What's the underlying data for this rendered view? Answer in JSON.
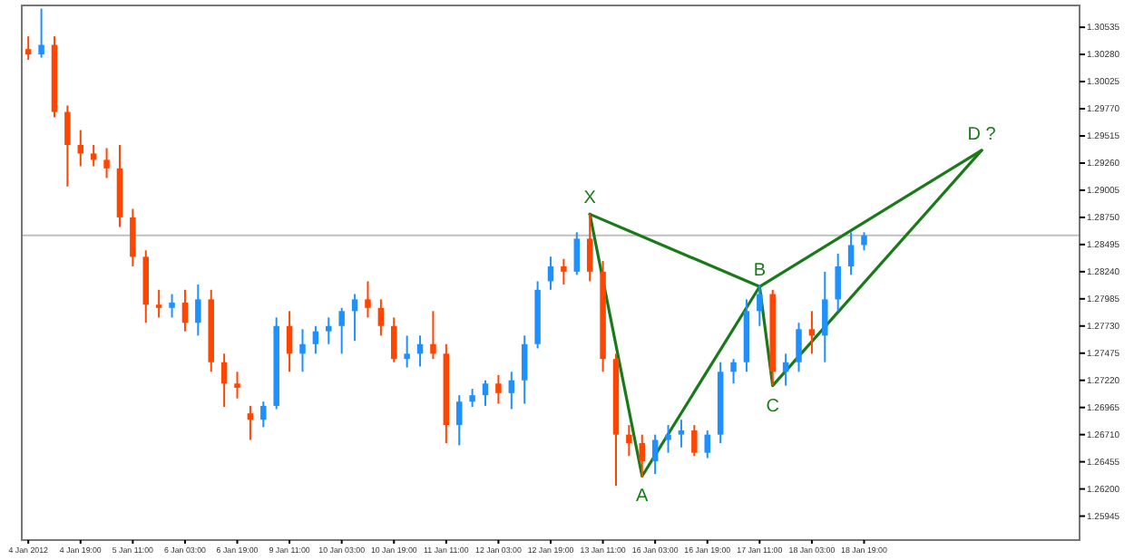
{
  "chart_data": {
    "type": "candlestick",
    "categories": [
      "4 Jan 2012",
      null,
      null,
      null,
      "4 Jan 19:00",
      null,
      null,
      null,
      "5 Jan 11:00",
      null,
      null,
      null,
      "6 Jan 03:00",
      null,
      null,
      null,
      "6 Jan 19:00",
      null,
      null,
      null,
      "9 Jan 11:00",
      null,
      null,
      null,
      "10 Jan 03:00",
      null,
      null,
      null,
      "10 Jan 19:00",
      null,
      null,
      null,
      "11 Jan 11:00",
      null,
      null,
      null,
      "12 Jan 03:00",
      null,
      null,
      null,
      "12 Jan 19:00",
      null,
      null,
      null,
      "13 Jan 11:00",
      null,
      null,
      null,
      "16 Jan 03:00",
      null,
      null,
      null,
      "16 Jan 19:00",
      null,
      null,
      null,
      "17 Jan 11:00",
      null,
      null,
      null,
      "18 Jan 03:00",
      null,
      null,
      null,
      "18 Jan 19:00",
      null,
      null,
      null,
      null,
      null,
      null,
      null,
      null,
      null,
      null,
      null,
      null,
      null,
      null,
      null,
      null
    ],
    "ylim": [
      1.2572,
      1.3074
    ],
    "yticks": [
      1.25945,
      {
        "value": 1.262,
        "label": "1.26200"
      },
      1.26455,
      {
        "value": 1.2671,
        "label": "1.26710"
      },
      1.26965,
      {
        "value": 1.2722,
        "label": "1.27220"
      },
      1.27475,
      {
        "value": 1.2773,
        "label": "1.27730"
      },
      1.27985,
      {
        "value": 1.2824,
        "label": "1.28240"
      },
      1.28495,
      {
        "value": 1.2875,
        "label": "1.28750"
      },
      1.29005,
      {
        "value": 1.2926,
        "label": "1.29260"
      },
      1.29515,
      {
        "value": 1.2977,
        "label": "1.29770"
      },
      1.30025,
      {
        "value": 1.3028,
        "label": "1.30280"
      },
      1.30535
    ],
    "series": [
      {
        "colors": [
          "#ff4500",
          "#1e90ff",
          "#ff4500",
          "#ff4500",
          "#ff4500",
          "#ff4500",
          "#ff4500",
          "#ff4500",
          "#ff4500",
          "#ff4500",
          "#ff4500",
          "#1e90ff",
          "#ff4500",
          "#1e90ff",
          "#ff4500",
          "#ff4500",
          "#ff4500",
          "#ff4500",
          "#1e90ff",
          "#1e90ff",
          "#ff4500",
          "#1e90ff",
          "#1e90ff",
          "#1e90ff",
          "#1e90ff",
          "#1e90ff",
          "#ff4500",
          "#ff4500",
          "#ff4500",
          "#1e90ff",
          "#1e90ff",
          "#ff4500",
          "#ff4500",
          "#1e90ff",
          "#1e90ff",
          "#1e90ff",
          "#ff4500",
          "#1e90ff",
          "#1e90ff",
          "#1e90ff",
          "#1e90ff",
          "#ff4500",
          "#1e90ff",
          "#ff4500",
          "#ff4500",
          "#ff4500",
          "#ff4500",
          "#ff4500",
          "#1e90ff",
          "#1e90ff",
          "#1e90ff",
          "#ff4500",
          "#1e90ff",
          "#1e90ff",
          "#1e90ff",
          "#1e90ff",
          "#1e90ff",
          "#ff4500",
          "#1e90ff",
          "#1e90ff",
          "#ff4500",
          "#1e90ff",
          "#1e90ff",
          "#1e90ff",
          "#1e90ff",
          null,
          null,
          null,
          null,
          null,
          null,
          null,
          null,
          null,
          null,
          null,
          null,
          null,
          null,
          null,
          null
        ],
        "ohlc": [
          [
            1.3033,
            1.3045,
            1.3023,
            1.3028
          ],
          [
            1.3028,
            1.3071,
            1.3025,
            1.3037
          ],
          [
            1.3037,
            1.3045,
            1.2969,
            1.2974
          ],
          [
            1.2974,
            1.298,
            1.2904,
            1.2943
          ],
          [
            1.2943,
            1.2957,
            1.2923,
            1.2935
          ],
          [
            1.2935,
            1.2943,
            1.2923,
            1.2929
          ],
          [
            1.2929,
            1.294,
            1.2912,
            1.2921
          ],
          [
            1.2921,
            1.2943,
            1.2866,
            1.2875
          ],
          [
            1.2875,
            1.2883,
            1.2829,
            1.2838
          ],
          [
            1.2838,
            1.2844,
            1.2776,
            1.2793
          ],
          [
            1.2793,
            1.2807,
            1.2781,
            1.279
          ],
          [
            1.279,
            1.2803,
            1.2781,
            1.2795
          ],
          [
            1.2795,
            1.2807,
            1.2768,
            1.2776
          ],
          [
            1.2776,
            1.2812,
            1.2764,
            1.2798
          ],
          [
            1.2798,
            1.2807,
            1.273,
            1.2739
          ],
          [
            1.2739,
            1.2747,
            1.2697,
            1.2719
          ],
          [
            1.2719,
            1.273,
            1.2705,
            1.2715
          ],
          [
            1.2691,
            1.2698,
            1.2666,
            1.2685
          ],
          [
            1.2685,
            1.2702,
            1.2678,
            1.2698
          ],
          [
            1.2698,
            1.2781,
            1.2695,
            1.2773
          ],
          [
            1.2773,
            1.2787,
            1.273,
            1.2747
          ],
          [
            1.2747,
            1.277,
            1.273,
            1.2756
          ],
          [
            1.2756,
            1.2773,
            1.2747,
            1.2768
          ],
          [
            1.2768,
            1.2781,
            1.2756,
            1.2773
          ],
          [
            1.2773,
            1.279,
            1.2747,
            1.2787
          ],
          [
            1.2787,
            1.2803,
            1.2759,
            1.2798
          ],
          [
            1.2798,
            1.2815,
            1.2781,
            1.279
          ],
          [
            1.279,
            1.2798,
            1.2764,
            1.2773
          ],
          [
            1.2773,
            1.2781,
            1.2739,
            1.2742
          ],
          [
            1.2742,
            1.2764,
            1.2734,
            1.2747
          ],
          [
            1.2747,
            1.2764,
            1.2735,
            1.2756
          ],
          [
            1.2756,
            1.2787,
            1.2742,
            1.2747
          ],
          [
            1.2747,
            1.2756,
            1.2663,
            1.268
          ],
          [
            1.268,
            1.2708,
            1.2661,
            1.2702
          ],
          [
            1.2702,
            1.2714,
            1.2697,
            1.2708
          ],
          [
            1.2708,
            1.2722,
            1.2698,
            1.2719
          ],
          [
            1.2719,
            1.2727,
            1.27,
            1.271
          ],
          [
            1.271,
            1.273,
            1.2695,
            1.2722
          ],
          [
            1.2722,
            1.2764,
            1.27,
            1.2756
          ],
          [
            1.2756,
            1.2815,
            1.2752,
            1.2807
          ],
          [
            1.2815,
            1.2838,
            1.2807,
            1.2829
          ],
          [
            1.2829,
            1.2836,
            1.2812,
            1.2824
          ],
          [
            1.2824,
            1.2861,
            1.2821,
            1.2855
          ],
          [
            1.2855,
            1.2878,
            1.2815,
            1.2824
          ],
          [
            1.2824,
            1.2834,
            1.273,
            1.2742
          ],
          [
            1.2742,
            1.2747,
            1.2623,
            1.2671
          ],
          [
            1.2671,
            1.268,
            1.2651,
            1.2663
          ],
          [
            1.2663,
            1.2671,
            1.2631,
            1.2646
          ],
          [
            1.2646,
            1.2671,
            1.2634,
            1.2666
          ],
          [
            1.2666,
            1.268,
            1.2654,
            1.2671
          ],
          [
            1.2671,
            1.2685,
            1.2659,
            1.2675
          ],
          [
            1.2675,
            1.268,
            1.2651,
            1.2654
          ],
          [
            1.2654,
            1.2675,
            1.2649,
            1.2671
          ],
          [
            1.2671,
            1.2739,
            1.2663,
            1.273
          ],
          [
            1.273,
            1.2742,
            1.2719,
            1.2739
          ],
          [
            1.2739,
            1.2798,
            1.273,
            1.2787
          ],
          [
            1.2787,
            1.2812,
            1.2773,
            1.2803
          ],
          [
            1.2803,
            1.2807,
            1.2717,
            1.273
          ],
          [
            1.273,
            1.2747,
            1.2717,
            1.2739
          ],
          [
            1.2739,
            1.2776,
            1.273,
            1.277
          ],
          [
            1.277,
            1.2787,
            1.2747,
            1.2764
          ],
          [
            1.2764,
            1.2824,
            1.2739,
            1.2798
          ],
          [
            1.2798,
            1.2841,
            1.2787,
            1.2829
          ],
          [
            1.2829,
            1.2861,
            1.2821,
            1.2849
          ],
          [
            1.2849,
            1.2861,
            1.2844,
            1.2858
          ],
          null,
          null,
          null,
          null,
          null,
          null,
          null,
          null,
          null,
          null,
          null,
          null,
          null,
          null,
          null,
          null
        ]
      },
      {
        "type": "line",
        "color": "#1a7a1a",
        "values": [
          null,
          null,
          null,
          null,
          null,
          null,
          null,
          null,
          null,
          null,
          null,
          null,
          null,
          null,
          null,
          null,
          null,
          null,
          null,
          null,
          null,
          null,
          null,
          null,
          null,
          null,
          null,
          null,
          null,
          null,
          null,
          null,
          null,
          null,
          null,
          null,
          null,
          null,
          null,
          null,
          null,
          null,
          null,
          1.2878,
          null,
          null,
          null,
          1.2632,
          null,
          null,
          null,
          null,
          null,
          null,
          null,
          null,
          1.281,
          1.2717,
          null,
          null,
          null,
          null,
          null,
          null,
          null,
          null,
          null,
          null,
          null,
          null,
          null,
          null,
          null,
          1.2938,
          null,
          null,
          null,
          null,
          null,
          null,
          null
        ]
      },
      {
        "type": "line",
        "color": "#1a7a1a",
        "values": [
          null,
          null,
          null,
          null,
          null,
          null,
          null,
          null,
          null,
          null,
          null,
          null,
          null,
          null,
          null,
          null,
          null,
          null,
          null,
          null,
          null,
          null,
          null,
          null,
          null,
          null,
          null,
          null,
          null,
          null,
          null,
          null,
          null,
          null,
          null,
          null,
          null,
          null,
          null,
          null,
          null,
          null,
          null,
          1.2878,
          null,
          null,
          null,
          null,
          null,
          null,
          null,
          null,
          null,
          null,
          null,
          null,
          1.281,
          null,
          null,
          null,
          null,
          null,
          null,
          null,
          null,
          null,
          null,
          null,
          null,
          null,
          null,
          null,
          null,
          1.2938,
          null,
          null,
          null,
          null,
          null,
          null,
          null
        ]
      }
    ],
    "ref_lines": [
      {
        "axis": "y",
        "value": 1.2858,
        "color": "#c0c0c0"
      }
    ],
    "annotations": [
      "X",
      "A",
      "B",
      "C",
      "D ?"
    ],
    "grid": false
  }
}
